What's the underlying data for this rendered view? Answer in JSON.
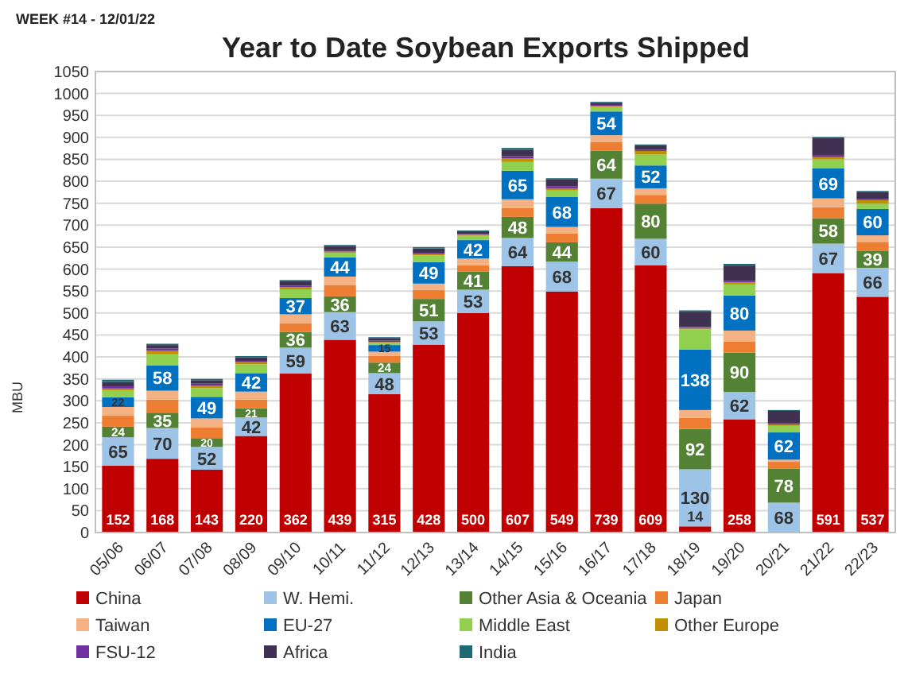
{
  "chart_data": {
    "type": "bar",
    "stacked": true,
    "title": "Year to Date Soybean Exports Shipped",
    "ylabel": "MBU",
    "annotations": [
      "WEEK #14 - 12/01/22"
    ],
    "categories": [
      "05/06",
      "06/07",
      "07/08",
      "08/09",
      "09/10",
      "10/11",
      "11/12",
      "12/13",
      "13/14",
      "14/15",
      "15/16",
      "16/17",
      "17/18",
      "18/19",
      "19/20",
      "20/21",
      "21/22",
      "22/23"
    ],
    "ylim": [
      0,
      1050
    ],
    "yticks": [
      0,
      50,
      100,
      150,
      200,
      250,
      300,
      350,
      400,
      450,
      500,
      550,
      600,
      650,
      700,
      750,
      800,
      850,
      900,
      950,
      1000,
      1050
    ],
    "grid": "y",
    "legend": "bottom",
    "series": [
      {
        "name": "China",
        "color": "#c00000",
        "values": [
          152,
          168,
          143,
          220,
          362,
          439,
          315,
          428,
          500,
          607,
          549,
          739,
          609,
          14,
          258,
          0,
          591,
          537
        ],
        "value_labels": [
          "152",
          "168",
          "143",
          "220",
          "362",
          "439",
          "315",
          "428",
          "500",
          "607",
          "549",
          "739",
          "609",
          "14",
          "258",
          null,
          "591",
          "537"
        ]
      },
      {
        "name": "W. Hemi.",
        "color": "#9dc3e6",
        "values": [
          65,
          70,
          52,
          42,
          59,
          63,
          48,
          53,
          53,
          64,
          68,
          67,
          60,
          130,
          62,
          68,
          67,
          66
        ],
        "value_labels": [
          "65",
          "70",
          "52",
          "42",
          "59",
          "63",
          "48",
          "53",
          "53",
          "64",
          "68",
          "67",
          "60",
          "130",
          "62",
          "68",
          "67",
          "66"
        ]
      },
      {
        "name": "Other Asia & Oceania",
        "color": "#548235",
        "values": [
          24,
          35,
          20,
          21,
          36,
          36,
          24,
          51,
          41,
          48,
          44,
          64,
          80,
          92,
          90,
          78,
          58,
          39
        ],
        "value_labels": [
          "24",
          "35",
          "20",
          "21",
          "36",
          "36",
          "24",
          "51",
          "41",
          "48",
          "44",
          "64",
          "80",
          "92",
          "90",
          "78",
          "58",
          "39"
        ]
      },
      {
        "name": "Japan",
        "color": "#ed7d31",
        "values": [
          25,
          30,
          25,
          20,
          20,
          25,
          15,
          20,
          15,
          20,
          20,
          20,
          20,
          25,
          25,
          15,
          25,
          20
        ]
      },
      {
        "name": "Taiwan",
        "color": "#f4b183",
        "values": [
          20,
          20,
          20,
          18,
          20,
          20,
          10,
          15,
          15,
          20,
          15,
          15,
          15,
          18,
          25,
          5,
          20,
          15
        ]
      },
      {
        "name": "EU-27",
        "color": "#0070c0",
        "values": [
          22,
          58,
          49,
          42,
          37,
          44,
          15,
          49,
          42,
          65,
          68,
          54,
          52,
          138,
          80,
          62,
          69,
          60
        ],
        "value_labels": [
          "22",
          "58",
          "49",
          "42",
          "37",
          "44",
          "15",
          "49",
          "42",
          "65",
          "68",
          "54",
          "52",
          "138",
          "80",
          "62",
          "69",
          "60"
        ]
      },
      {
        "name": "Middle East",
        "color": "#92d050",
        "values": [
          15,
          25,
          20,
          20,
          20,
          10,
          5,
          15,
          10,
          20,
          15,
          10,
          25,
          46,
          25,
          15,
          20,
          12
        ]
      },
      {
        "name": "Other Europe",
        "color": "#bf9000",
        "values": [
          5,
          8,
          5,
          5,
          5,
          3,
          2,
          3,
          2,
          8,
          5,
          3,
          8,
          3,
          5,
          3,
          5,
          8
        ]
      },
      {
        "name": "FSU-12",
        "color": "#7030a0",
        "values": [
          5,
          5,
          5,
          3,
          3,
          3,
          3,
          3,
          2,
          5,
          5,
          2,
          3,
          2,
          3,
          3,
          5,
          3
        ]
      },
      {
        "name": "Africa",
        "color": "#403151",
        "values": [
          10,
          8,
          8,
          8,
          10,
          10,
          6,
          10,
          6,
          15,
          15,
          5,
          10,
          35,
          35,
          28,
          38,
          15
        ]
      },
      {
        "name": "India",
        "color": "#1f6b75",
        "values": [
          5,
          3,
          3,
          3,
          3,
          2,
          2,
          3,
          2,
          4,
          3,
          2,
          2,
          3,
          4,
          2,
          3,
          3
        ]
      }
    ]
  }
}
